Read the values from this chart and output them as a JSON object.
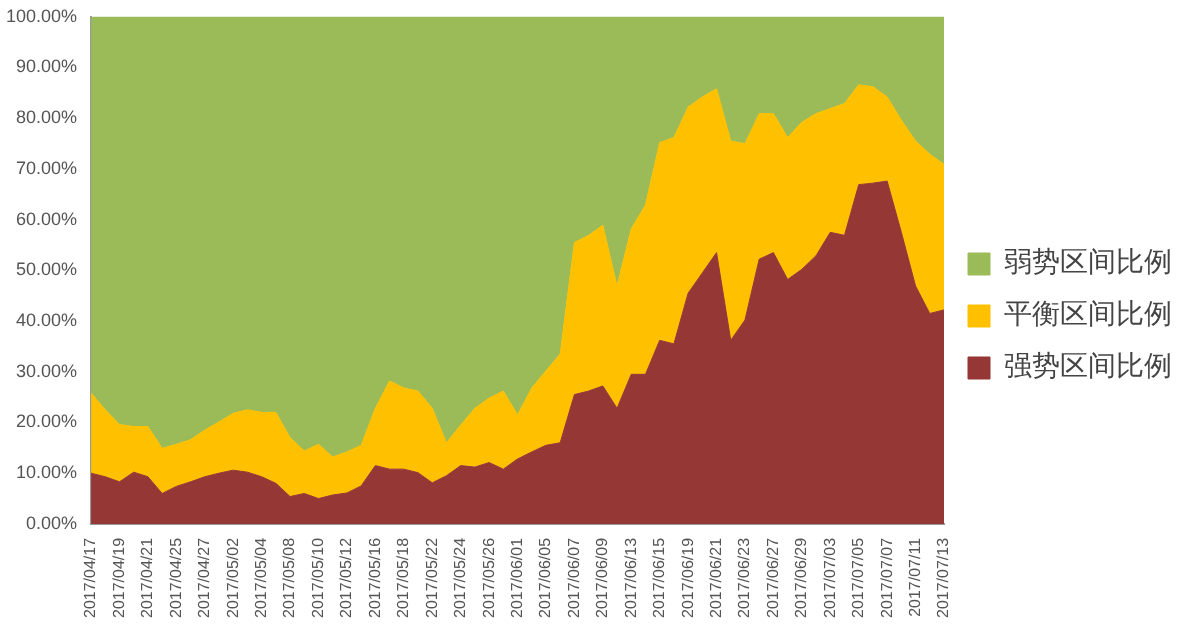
{
  "chart_data": {
    "type": "area",
    "stacked": true,
    "legend": "right",
    "categories": [
      "2017/04/17",
      null,
      "2017/04/19",
      null,
      "2017/04/21",
      null,
      "2017/04/25",
      null,
      "2017/04/27",
      null,
      "2017/05/02",
      null,
      "2017/05/04",
      null,
      "2017/05/08",
      null,
      "2017/05/10",
      null,
      "2017/05/12",
      null,
      "2017/05/16",
      null,
      "2017/05/18",
      null,
      "2017/05/22",
      null,
      "2017/05/24",
      null,
      "2017/05/26",
      null,
      "2017/06/01",
      null,
      "2017/06/05",
      null,
      "2017/06/07",
      null,
      "2017/06/09",
      null,
      "2017/06/13",
      null,
      "2017/06/15",
      null,
      "2017/06/19",
      null,
      "2017/06/21",
      null,
      "2017/06/23",
      null,
      "2017/06/27",
      null,
      "2017/06/29",
      null,
      "2017/07/03",
      null,
      "2017/07/05",
      null,
      "2017/07/07",
      null,
      "2017/07/11",
      null,
      "2017/07/13"
    ],
    "ylim": [
      0,
      100
    ],
    "yticks": [
      {
        "value": 0,
        "label": "0.00%"
      },
      {
        "value": 10,
        "label": "10.00%"
      },
      {
        "value": 20,
        "label": "20.00%"
      },
      {
        "value": 30,
        "label": "30.00%"
      },
      {
        "value": 40,
        "label": "40.00%"
      },
      {
        "value": 50,
        "label": "50.00%"
      },
      {
        "value": 60,
        "label": "60.00%"
      },
      {
        "value": 70,
        "label": "70.00%"
      },
      {
        "value": 80,
        "label": "80.00%"
      },
      {
        "value": 90,
        "label": "90.00%"
      },
      {
        "value": 100,
        "label": "100.00%"
      }
    ],
    "series": [
      {
        "name": "强势区间比例",
        "color": "#953735",
        "values": [
          10,
          9.3,
          8.3,
          10.2,
          9.3,
          6,
          7.4,
          8.3,
          9.3,
          10,
          10.6,
          10.2,
          9.3,
          8,
          5.4,
          6,
          5,
          5.7,
          6.1,
          7.5,
          11.5,
          10.8,
          10.8,
          10.1,
          8.1,
          9.5,
          11.5,
          11.2,
          12.1,
          10.8,
          12.8,
          14.2,
          15.5,
          16,
          25.5,
          26.2,
          27.2,
          22.8,
          29.5,
          29.5,
          36.2,
          35.5,
          45.5,
          49.5,
          53.5,
          36.2,
          40.2,
          52.2,
          53.5,
          48.2,
          50.2,
          52.9,
          57.5,
          56.9,
          66.9,
          67.2,
          67.6,
          57.5,
          46.9,
          41.5,
          42.2
        ]
      },
      {
        "name": "平衡区间比例",
        "color": "#ffc000",
        "values": [
          15.8,
          13.2,
          11.3,
          9,
          9.9,
          8.9,
          8.3,
          8.3,
          9.2,
          10.1,
          11.2,
          12.3,
          12.7,
          14,
          11.6,
          8.4,
          10.7,
          7.5,
          8.1,
          8,
          11.3,
          17.4,
          16,
          16.1,
          14.7,
          6.5,
          8,
          11.6,
          12.7,
          15.4,
          8.7,
          12.6,
          14.7,
          17.5,
          30,
          30.7,
          31.7,
          24.1,
          28.7,
          33.4,
          39,
          40.7,
          36.7,
          34.7,
          32.3,
          39.3,
          34.8,
          28.7,
          27.4,
          28,
          29,
          28,
          24.4,
          26,
          19.7,
          19,
          16.6,
          22.1,
          28.6,
          31.4,
          28.7
        ]
      },
      {
        "name": "弱势区间比例",
        "color": "#9bbb59",
        "values": [
          74.2,
          77.5,
          80.4,
          80.8,
          80.8,
          85.1,
          84.3,
          83.4,
          81.5,
          79.9,
          78.2,
          77.5,
          78,
          78,
          83,
          85.6,
          84.3,
          86.8,
          85.8,
          84.5,
          77.2,
          71.8,
          73.2,
          73.8,
          77.2,
          84,
          80.5,
          77.2,
          75.2,
          73.8,
          78.5,
          73.2,
          69.8,
          66.5,
          44.5,
          43.1,
          41.1,
          53.1,
          41.8,
          37.1,
          24.8,
          23.8,
          17.8,
          15.8,
          14.2,
          24.5,
          25,
          19.1,
          19.1,
          23.8,
          20.8,
          19.1,
          18.1,
          17.1,
          13.4,
          13.8,
          15.8,
          20.4,
          24.5,
          27.1,
          29.1
        ]
      }
    ]
  }
}
